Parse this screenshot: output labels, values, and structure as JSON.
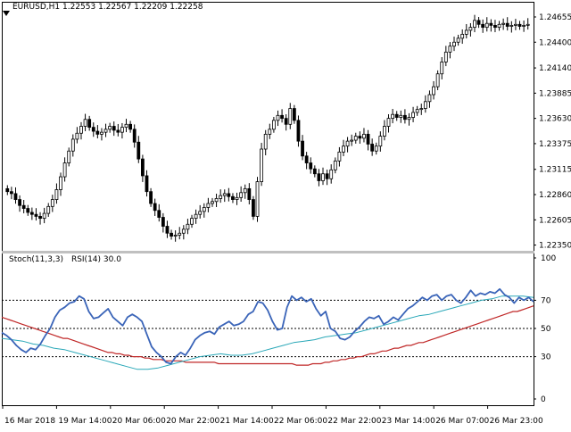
{
  "header": {
    "symbol": "EURUSD,H1",
    "ohlc": "1.22553 1.22567 1.22209 1.22258"
  },
  "subwindow": {
    "stoch_label": "Stoch(11,3,3)",
    "rsi_label": "RSI(14) 30.0"
  },
  "colors": {
    "background": "#ffffff",
    "candle": "#000000",
    "grid": "#000000",
    "stoch_main": "#3a64b8",
    "stoch_signal": "#2aa8b8",
    "rsi": "#c02828"
  },
  "icons": {
    "collapse": "triangle-down-icon"
  },
  "chart_data": [
    {
      "type": "candlestick",
      "title": "EURUSD,H1",
      "price_ticks": [
        "1.24655",
        "1.24400",
        "1.24140",
        "1.23885",
        "1.23630",
        "1.23375",
        "1.23115",
        "1.22860",
        "1.22605",
        "1.22350"
      ],
      "price_tick_values": [
        1.24655,
        1.244,
        1.2414,
        1.23885,
        1.2363,
        1.23375,
        1.23115,
        1.2286,
        1.22605,
        1.2235
      ],
      "ylim": [
        1.2231,
        1.247
      ],
      "time_ticks": [
        "16 Mar 2018",
        "19 Mar 14:00",
        "20 Mar 06:00",
        "20 Mar 22:00",
        "21 Mar 14:00",
        "22 Mar 06:00",
        "22 Mar 22:00",
        "23 Mar 14:00",
        "26 Mar 07:00",
        "26 Mar 23:00"
      ],
      "close": [
        1.2289,
        1.2287,
        1.2281,
        1.2275,
        1.2272,
        1.2268,
        1.2266,
        1.2264,
        1.2262,
        1.2267,
        1.2274,
        1.2281,
        1.2291,
        1.2304,
        1.2318,
        1.233,
        1.2342,
        1.2348,
        1.2355,
        1.2362,
        1.2354,
        1.235,
        1.2347,
        1.2349,
        1.2352,
        1.2355,
        1.2351,
        1.2349,
        1.2354,
        1.2357,
        1.2352,
        1.2339,
        1.2322,
        1.2305,
        1.2289,
        1.2277,
        1.227,
        1.2263,
        1.2254,
        1.2247,
        1.2244,
        1.2245,
        1.2247,
        1.2251,
        1.2256,
        1.2262,
        1.2266,
        1.2269,
        1.2273,
        1.2277,
        1.2279,
        1.2282,
        1.2285,
        1.2287,
        1.2284,
        1.2281,
        1.2283,
        1.2288,
        1.2292,
        1.2281,
        1.2264,
        1.2299,
        1.2332,
        1.2347,
        1.2352,
        1.2361,
        1.2366,
        1.2363,
        1.2357,
        1.2373,
        1.2361,
        1.234,
        1.2325,
        1.2318,
        1.2312,
        1.2307,
        1.23,
        1.2307,
        1.2302,
        1.2311,
        1.232,
        1.2329,
        1.2335,
        1.234,
        1.2341,
        1.2345,
        1.2343,
        1.2347,
        1.2337,
        1.233,
        1.2335,
        1.2345,
        1.2355,
        1.2363,
        1.2367,
        1.2364,
        1.2366,
        1.2362,
        1.2364,
        1.2369,
        1.2372,
        1.2373,
        1.238,
        1.2387,
        1.2395,
        1.2408,
        1.242,
        1.243,
        1.2436,
        1.244,
        1.2444,
        1.2448,
        1.2452,
        1.2455,
        1.2462,
        1.2458,
        1.2455,
        1.2459,
        1.2457,
        1.2455,
        1.2458,
        1.2459,
        1.2456,
        1.2457,
        1.2458,
        1.2456,
        1.2457,
        1.2458
      ],
      "stoch_main": [
        47,
        45,
        42,
        38,
        35,
        33,
        36,
        35,
        39,
        45,
        50,
        58,
        63,
        65,
        68,
        69,
        73,
        71,
        62,
        57,
        58,
        61,
        64,
        58,
        55,
        52,
        58,
        60,
        58,
        55,
        46,
        37,
        33,
        30,
        26,
        25,
        30,
        33,
        31,
        36,
        42,
        45,
        47,
        48,
        46,
        51,
        53,
        55,
        52,
        53,
        55,
        60,
        62,
        69,
        68,
        63,
        55,
        49,
        50,
        65,
        73,
        70,
        72,
        69,
        71,
        64,
        59,
        62,
        50,
        48,
        43,
        42,
        44,
        48,
        51,
        55,
        58,
        57,
        59,
        53,
        55,
        58,
        56,
        60,
        64,
        66,
        69,
        72,
        70,
        73,
        74,
        70,
        73,
        74,
        70,
        68,
        72,
        77,
        73,
        75,
        74,
        76,
        75,
        78,
        74,
        72,
        68,
        72,
        70,
        72,
        69
      ],
      "stoch_signal": [
        43,
        42,
        41,
        39,
        38,
        36,
        35,
        33,
        31,
        29,
        27,
        25,
        23,
        21,
        21,
        22,
        24,
        26,
        28,
        30,
        31,
        32,
        31,
        31,
        32,
        34,
        36,
        38,
        40,
        41,
        42,
        44,
        45,
        46,
        47,
        49,
        51,
        53,
        55,
        57,
        59,
        60,
        62,
        64,
        66,
        68,
        70,
        71,
        73,
        73,
        73,
        72
      ],
      "rsi": [
        58,
        57,
        56,
        55,
        54,
        53,
        52,
        51,
        50,
        49,
        48,
        47,
        46,
        45,
        44,
        43,
        43,
        42,
        41,
        40,
        39,
        38,
        37,
        36,
        35,
        34,
        33,
        33,
        32,
        32,
        31,
        31,
        30,
        30,
        30,
        29,
        29,
        28,
        28,
        28,
        27,
        27,
        27,
        27,
        27,
        26,
        26,
        26,
        26,
        26,
        26,
        26,
        26,
        25,
        25,
        25,
        25,
        25,
        25,
        25,
        25,
        25,
        25,
        25,
        25,
        25,
        25,
        25,
        25,
        25,
        25,
        25,
        24,
        24,
        24,
        24,
        25,
        25,
        25,
        26,
        26,
        27,
        27,
        28,
        28,
        29,
        29,
        30,
        30,
        31,
        32,
        32,
        33,
        34,
        34,
        35,
        36,
        36,
        37,
        38,
        38,
        39,
        40,
        40,
        41,
        42,
        43,
        44,
        45,
        46,
        47,
        48,
        49,
        50,
        51,
        52,
        53,
        54,
        55,
        56,
        57,
        58,
        59,
        60,
        61,
        62,
        62,
        63,
        64,
        65,
        66
      ],
      "indicator_ticks": [
        "100",
        "70",
        "50",
        "30",
        "0"
      ],
      "indicator_tick_values": [
        100,
        70,
        50,
        30,
        0
      ],
      "indicator_levels": [
        70,
        50,
        30
      ]
    }
  ]
}
